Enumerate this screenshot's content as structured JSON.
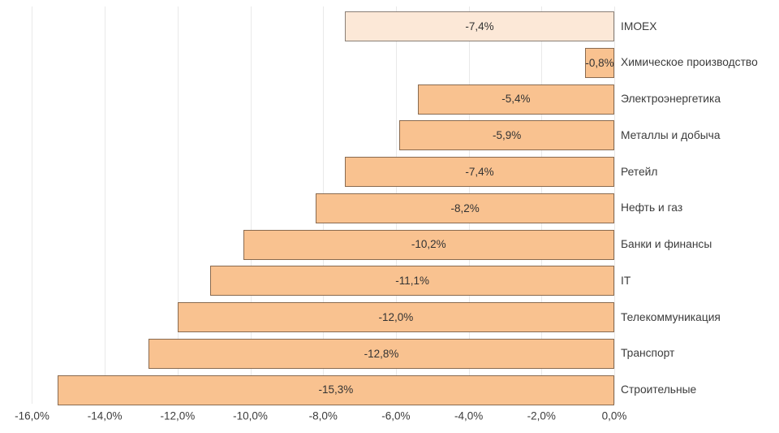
{
  "chart_data": {
    "type": "bar",
    "orientation": "horizontal",
    "title": "",
    "xlabel": "",
    "ylabel": "",
    "xlim": [
      -16,
      0
    ],
    "grid": true,
    "legend": false,
    "categories": [
      "IMOEX",
      "Химическое производство",
      "Электроэнергетика",
      "Металлы и добыча",
      "Ретейл",
      "Нефть и газ",
      "Банки и финансы",
      "IT",
      "Телекоммуникация",
      "Транспорт",
      "Строительные"
    ],
    "values": [
      -7.4,
      -0.8,
      -5.4,
      -5.9,
      -7.4,
      -8.2,
      -10.2,
      -11.1,
      -12.0,
      -12.8,
      -15.3
    ],
    "value_labels": [
      "-7,4%",
      "-0,8%",
      "-5,4%",
      "-5,9%",
      "-7,4%",
      "-8,2%",
      "-10,2%",
      "-11,1%",
      "-12,0%",
      "-12,8%",
      "-15,3%"
    ],
    "x_tick_values": [
      -16,
      -14,
      -12,
      -10,
      -8,
      -6,
      -4,
      -2,
      0
    ],
    "x_tick_labels": [
      "-16,0%",
      "-14,0%",
      "-12,0%",
      "-10,0%",
      "-8,0%",
      "-6,0%",
      "-4,0%",
      "-2,0%",
      "0,0%"
    ],
    "highlight_category": "IMOEX",
    "colors": {
      "background": "#ffffff",
      "bar_fill": "#f9c290",
      "highlight_fill": "#fce8d7",
      "bar_border": "rgba(0,0,0,0.45)",
      "gridline": "#e9e9e9",
      "value_text": "#333333",
      "axis_text": "#3c3c3c"
    }
  }
}
